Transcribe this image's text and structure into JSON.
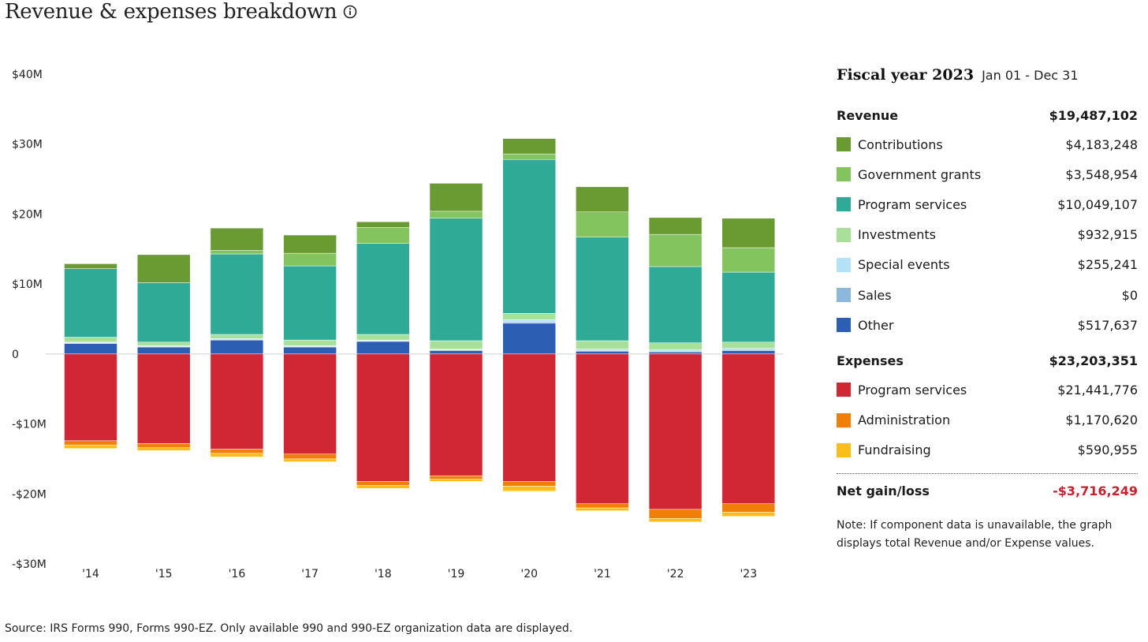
{
  "header": {
    "title": "Revenue & expenses breakdown"
  },
  "source_note": "Source: IRS Forms 990, Forms 990-EZ. Only available 990 and 990-EZ organization data are displayed.",
  "panel": {
    "fiscal_year": "Fiscal year 2023",
    "date_range": "Jan 01 - Dec 31",
    "revenue_label": "Revenue",
    "revenue_total": "$19,487,102",
    "revenue_items": [
      {
        "label": "Contributions",
        "value": "$4,183,248",
        "color": "#6a9a32"
      },
      {
        "label": "Government grants",
        "value": "$3,548,954",
        "color": "#84c45f"
      },
      {
        "label": "Program services",
        "value": "$10,049,107",
        "color": "#2eaa96"
      },
      {
        "label": "Investments",
        "value": "$932,915",
        "color": "#a8e09a"
      },
      {
        "label": "Special events",
        "value": "$255,241",
        "color": "#b3e1f7"
      },
      {
        "label": "Sales",
        "value": "$0",
        "color": "#8db8dd"
      },
      {
        "label": "Other",
        "value": "$517,637",
        "color": "#2c5fb3"
      }
    ],
    "expenses_label": "Expenses",
    "expenses_total": "$23,203,351",
    "expense_items": [
      {
        "label": "Program services",
        "value": "$21,441,776",
        "color": "#d12633"
      },
      {
        "label": "Administration",
        "value": "$1,170,620",
        "color": "#f07f0a"
      },
      {
        "label": "Fundraising",
        "value": "$590,955",
        "color": "#fbbd19"
      }
    ],
    "net_label": "Net gain/loss",
    "net_value": "-$3,716,249",
    "note": "Note: If component data is unavailable, the graph displays total Revenue and/or Expense values."
  },
  "chart_data": {
    "type": "bar",
    "stacked": true,
    "categories": [
      "'14",
      "'15",
      "'16",
      "'17",
      "'18",
      "'19",
      "'20",
      "'21",
      "'22",
      "'23"
    ],
    "ylim": [
      -30,
      40
    ],
    "yunit": "$M",
    "yticks": [
      40,
      30,
      20,
      10,
      0,
      -10,
      -20,
      -30
    ],
    "ytick_labels": [
      "$40M",
      "$30M",
      "$20M",
      "$10M",
      "0",
      "-$10M",
      "-$20M",
      "-$30M"
    ],
    "grid": false,
    "zero_line": true,
    "revenue_series": [
      {
        "name": "Other",
        "color": "#2c5fb3",
        "values": [
          1.5,
          1.0,
          2.0,
          1.0,
          1.8,
          0.5,
          4.4,
          0.4,
          0.3,
          0.5
        ]
      },
      {
        "name": "Sales",
        "color": "#8db8dd",
        "values": [
          0.1,
          0.1,
          0.1,
          0.1,
          0.1,
          0.1,
          0.2,
          0.1,
          0.1,
          0.0
        ]
      },
      {
        "name": "Special events",
        "color": "#b3e1f7",
        "values": [
          0.1,
          0.1,
          0.1,
          0.1,
          0.1,
          0.1,
          0.3,
          0.2,
          0.2,
          0.3
        ]
      },
      {
        "name": "Investments",
        "color": "#a8e09a",
        "values": [
          0.7,
          0.5,
          0.6,
          0.8,
          0.8,
          1.2,
          0.9,
          1.2,
          1.0,
          0.9
        ]
      },
      {
        "name": "Program services",
        "color": "#2eaa96",
        "values": [
          9.8,
          8.5,
          11.5,
          10.6,
          13.0,
          17.5,
          22.0,
          14.8,
          10.9,
          10.0
        ]
      },
      {
        "name": "Government grants",
        "color": "#84c45f",
        "values": [
          0.0,
          0.0,
          0.5,
          1.8,
          2.3,
          1.0,
          0.8,
          3.6,
          4.6,
          3.5
        ]
      },
      {
        "name": "Contributions",
        "color": "#6a9a32",
        "values": [
          0.7,
          4.0,
          3.2,
          2.6,
          0.8,
          4.0,
          2.2,
          3.6,
          2.4,
          4.2
        ]
      }
    ],
    "expense_series": [
      {
        "name": "Program services",
        "color": "#d12633",
        "values": [
          -12.4,
          -12.8,
          -13.6,
          -14.3,
          -18.2,
          -17.4,
          -18.2,
          -21.4,
          -22.2,
          -21.4
        ]
      },
      {
        "name": "Administration",
        "color": "#f07f0a",
        "values": [
          -0.6,
          -0.6,
          -0.6,
          -0.7,
          -0.6,
          -0.5,
          -0.7,
          -0.6,
          -1.3,
          -1.2
        ]
      },
      {
        "name": "Fundraising",
        "color": "#fbbd19",
        "values": [
          -0.5,
          -0.4,
          -0.5,
          -0.4,
          -0.4,
          -0.3,
          -0.7,
          -0.4,
          -0.5,
          -0.6
        ]
      }
    ]
  }
}
